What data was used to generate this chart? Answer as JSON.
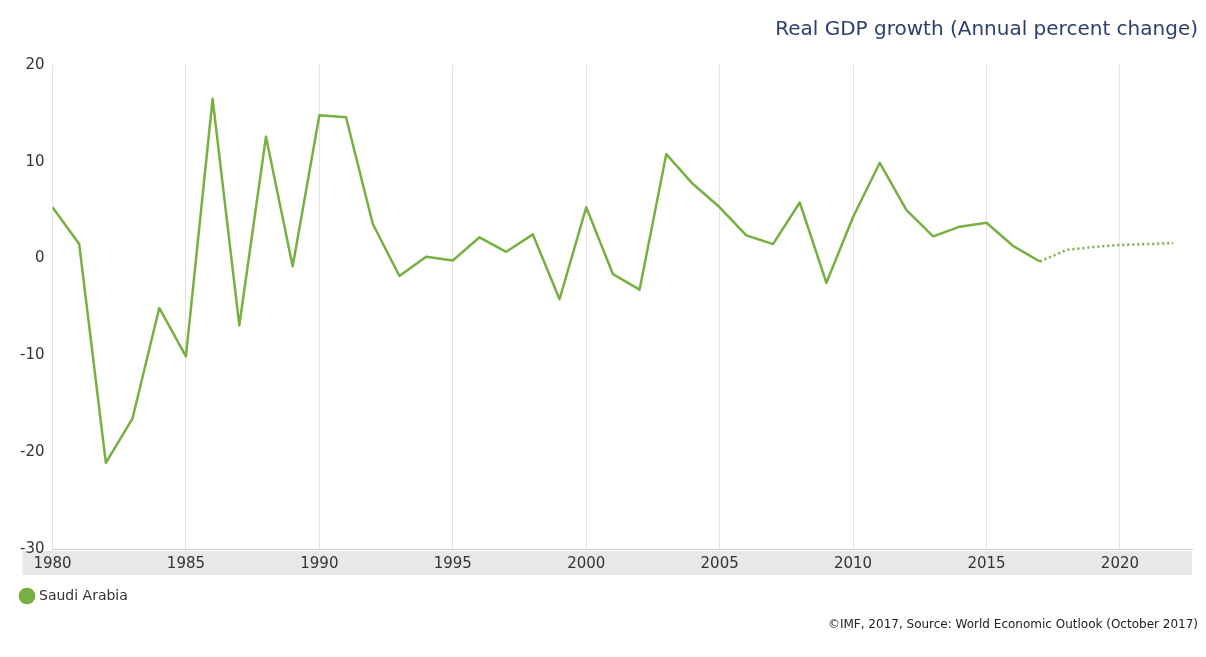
{
  "chart_data": {
    "type": "line",
    "title": "Real GDP growth (Annual percent change)",
    "annotations": [
      "©IMF, 2017, Source: World Economic Outlook (October 2017)"
    ],
    "series": [
      {
        "name": "Saudi Arabia",
        "color": "#76b041",
        "x": [
          1980,
          1981,
          1982,
          1983,
          1984,
          1985,
          1986,
          1987,
          1988,
          1989,
          1990,
          1991,
          1992,
          1993,
          1994,
          1995,
          1996,
          1997,
          1998,
          1999,
          2000,
          2001,
          2002,
          2003,
          2004,
          2005,
          2006,
          2007,
          2008,
          2009,
          2010,
          2011,
          2012,
          2013,
          2014,
          2015,
          2016,
          2017
        ],
        "values": [
          5.3,
          1.5,
          -21.1,
          -16.5,
          -5.1,
          -10.1,
          16.5,
          -6.9,
          12.6,
          -0.8,
          14.8,
          14.6,
          3.6,
          -1.8,
          0.2,
          -0.2,
          2.2,
          0.7,
          2.5,
          -4.2,
          5.3,
          -1.6,
          -3.2,
          10.8,
          7.7,
          5.3,
          2.4,
          1.5,
          5.8,
          -2.5,
          4.3,
          9.9,
          5.0,
          2.3,
          3.3,
          3.7,
          1.3,
          -0.3
        ]
      },
      {
        "color": "#76b041",
        "line_style": "dotted",
        "x": [
          2017,
          2018,
          2019,
          2020,
          2021,
          2022
        ],
        "values": [
          -0.3,
          0.9,
          1.2,
          1.4,
          1.5,
          1.6
        ]
      }
    ],
    "xlim": [
      1980,
      2022.7
    ],
    "xticks": [
      1980,
      1985,
      1990,
      1995,
      2000,
      2005,
      2010,
      2015,
      2020
    ],
    "ylim": [
      -30,
      20
    ],
    "yticks": [
      -30,
      -20,
      -10,
      0,
      10,
      20
    ],
    "grid": "x",
    "legend": "bottom left",
    "marker": "none",
    "line_style": "solid"
  }
}
